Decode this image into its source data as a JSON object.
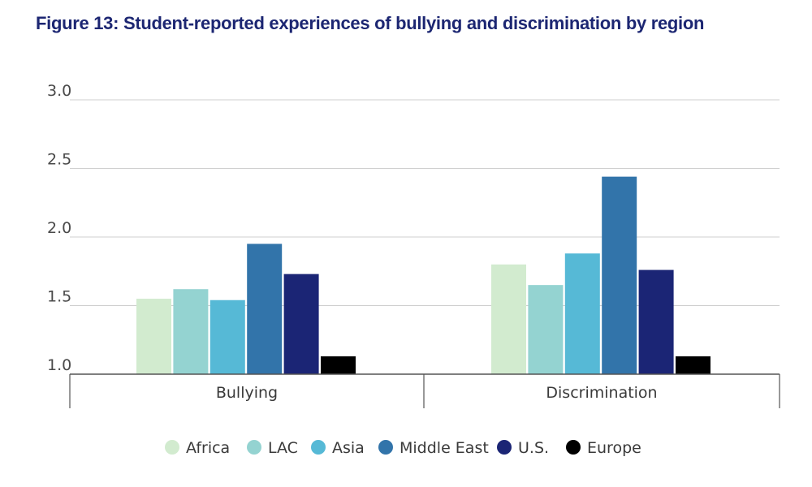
{
  "title": "Figure 13: Student-reported experiences of bullying and discrimination by region",
  "chart_data": {
    "type": "bar",
    "categories": [
      "Bullying",
      "Discrimination"
    ],
    "series": [
      {
        "name": "Africa",
        "color": "#d2ebcf",
        "values": [
          1.55,
          1.8
        ]
      },
      {
        "name": "LAC",
        "color": "#94d3d1",
        "values": [
          1.62,
          1.65
        ]
      },
      {
        "name": "Asia",
        "color": "#56b9d6",
        "values": [
          1.54,
          1.88
        ]
      },
      {
        "name": "Middle East",
        "color": "#3274aa",
        "values": [
          1.95,
          2.44
        ]
      },
      {
        "name": "U.S.",
        "color": "#1b2575",
        "values": [
          1.73,
          1.76
        ]
      },
      {
        "name": "Europe",
        "color": "#000000",
        "values": [
          1.13,
          1.13
        ]
      }
    ],
    "ylim": [
      1.0,
      3.0
    ],
    "yticks": [
      "1.0",
      "1.5",
      "2.0",
      "2.5",
      "3.0"
    ],
    "grid": true,
    "legend_position": "bottom"
  }
}
